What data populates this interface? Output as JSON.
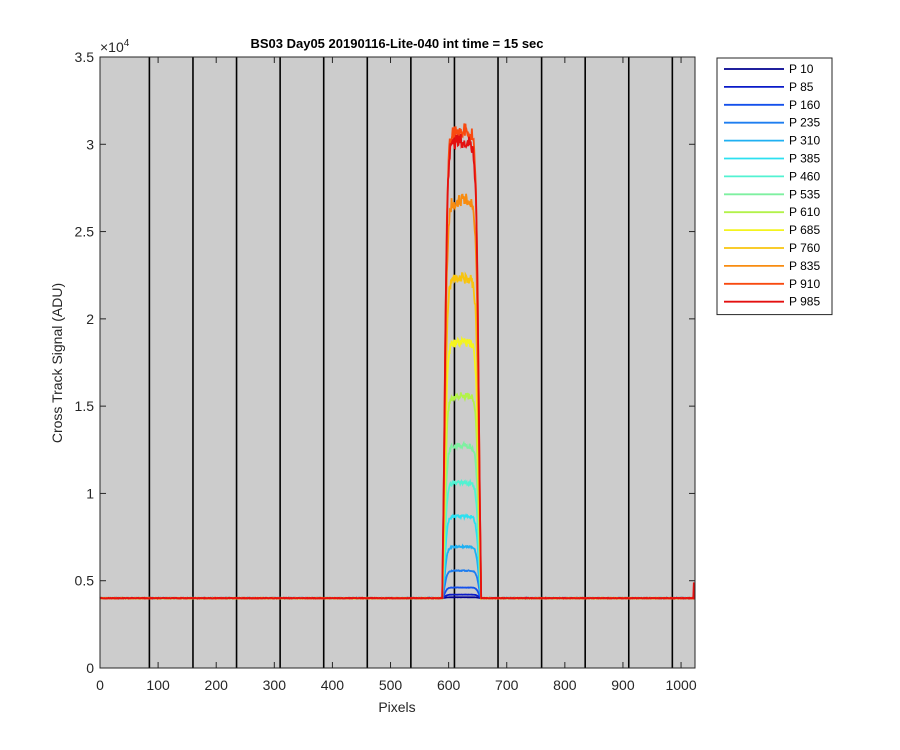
{
  "chart_data": {
    "type": "line",
    "title": "BS03 Day05 20190116-Lite-040 int time = 15 sec",
    "xlabel": "Pixels",
    "ylabel": "Cross Track Signal (ADU)",
    "xlim": [
      0,
      1024
    ],
    "ylim": [
      0,
      35000
    ],
    "x_ticks": [
      0,
      100,
      200,
      300,
      400,
      500,
      600,
      700,
      800,
      900,
      1000
    ],
    "y_ticks": [
      0,
      5000,
      10000,
      15000,
      20000,
      25000,
      30000,
      35000
    ],
    "y_tick_labels": [
      "0",
      "0.5",
      "1",
      "1.5",
      "2",
      "2.5",
      "3",
      "3.5"
    ],
    "y_exponent": "×10",
    "y_exponent_power": "4",
    "background_color": "#cccccc",
    "grid": false,
    "vertical_lines_x": [
      85,
      160,
      235,
      310,
      385,
      460,
      535,
      610,
      685,
      760,
      835,
      910,
      985
    ],
    "baseline": 4000,
    "legend_position": "outside-right-top",
    "signal_region": {
      "x_start": 590,
      "x_end": 655
    },
    "series": [
      {
        "name": "P 10",
        "color": "#00008f",
        "plateau": 4050
      },
      {
        "name": "P 85",
        "color": "#0a1ac8",
        "plateau": 4200
      },
      {
        "name": "P 160",
        "color": "#1450ec",
        "plateau": 4600
      },
      {
        "name": "P 235",
        "color": "#1e7ef0",
        "plateau": 5550
      },
      {
        "name": "P 310",
        "color": "#1fb0f2",
        "plateau": 6900
      },
      {
        "name": "P 385",
        "color": "#2ce0f0",
        "plateau": 8600
      },
      {
        "name": "P 460",
        "color": "#52f2d2",
        "plateau": 10500
      },
      {
        "name": "P 535",
        "color": "#7ef0a0",
        "plateau": 12600
      },
      {
        "name": "P 610",
        "color": "#b2f24a",
        "plateau": 15400
      },
      {
        "name": "P 685",
        "color": "#f4f41e",
        "plateau": 18400
      },
      {
        "name": "P 760",
        "color": "#f8c40e",
        "plateau": 22000
      },
      {
        "name": "P 835",
        "color": "#f88c10",
        "plateau": 26400
      },
      {
        "name": "P 910",
        "color": "#f84a10",
        "plateau": 30300
      },
      {
        "name": "P 985",
        "color": "#e41010",
        "plateau": 29700
      }
    ]
  }
}
